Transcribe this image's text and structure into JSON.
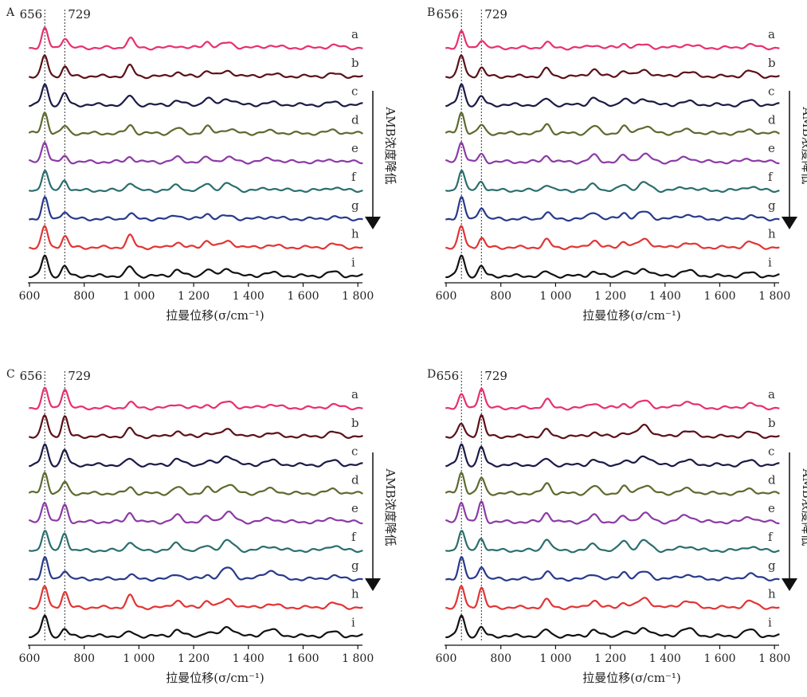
{
  "chart_data": [
    {
      "panel": "A",
      "type": "line",
      "xlabel": "拉曼位移(σ/cm⁻¹)",
      "ylabel": "",
      "xlim": [
        600,
        1800
      ],
      "x_ticks": [
        "600",
        "800",
        "1 000",
        "1 200",
        "1 400",
        "1 600",
        "1 800"
      ],
      "reference_lines": [
        {
          "x": 656,
          "label": "656"
        },
        {
          "x": 729,
          "label": "729"
        }
      ],
      "arrow_label": "AMB浓度降低",
      "peaks_x": [
        656,
        729,
        968,
        1140,
        1250,
        1325,
        1480,
        1710
      ],
      "series": [
        {
          "name": "a",
          "color": "#e8306e",
          "peaks": [
            0.9,
            0.5,
            0.45,
            0.1,
            0.3,
            0.25,
            0.1,
            0.12
          ]
        },
        {
          "name": "b",
          "color": "#5c1018",
          "peaks": [
            1.0,
            0.45,
            0.5,
            0.2,
            0.3,
            0.25,
            0.1,
            0.12
          ]
        },
        {
          "name": "c",
          "color": "#1a1a46",
          "peaks": [
            1.0,
            0.55,
            0.45,
            0.2,
            0.35,
            0.3,
            0.1,
            0.12
          ]
        },
        {
          "name": "d",
          "color": "#5c6a2e",
          "peaks": [
            1.0,
            0.35,
            0.4,
            0.25,
            0.3,
            0.2,
            0.1,
            0.15
          ]
        },
        {
          "name": "e",
          "color": "#8c3aa6",
          "peaks": [
            1.0,
            0.25,
            0.25,
            0.2,
            0.2,
            0.2,
            0.15,
            0.1
          ]
        },
        {
          "name": "f",
          "color": "#2a6e6e",
          "peaks": [
            1.0,
            0.5,
            0.4,
            0.25,
            0.35,
            0.3,
            0.1,
            0.15
          ]
        },
        {
          "name": "g",
          "color": "#283a8c",
          "peaks": [
            1.0,
            0.4,
            0.25,
            0.2,
            0.25,
            0.15,
            0.1,
            0.1
          ]
        },
        {
          "name": "h",
          "color": "#e23434",
          "peaks": [
            1.0,
            0.55,
            0.55,
            0.25,
            0.35,
            0.3,
            0.1,
            0.15
          ]
        },
        {
          "name": "i",
          "color": "#111111",
          "peaks": [
            1.0,
            0.45,
            0.45,
            0.3,
            0.35,
            0.35,
            0.15,
            0.2
          ]
        }
      ]
    },
    {
      "panel": "B",
      "type": "line",
      "xlabel": "拉曼位移(σ/cm⁻¹)",
      "ylabel": "",
      "xlim": [
        600,
        1800
      ],
      "x_ticks": [
        "600",
        "800",
        "1 000",
        "1 200",
        "1 400",
        "1 600",
        "1 800"
      ],
      "reference_lines": [
        {
          "x": 656,
          "label": "656"
        },
        {
          "x": 729,
          "label": "729"
        }
      ],
      "arrow_label": "AMB浓度降低",
      "peaks_x": [
        656,
        729,
        968,
        1140,
        1250,
        1325,
        1480,
        1710
      ],
      "series": [
        {
          "name": "a",
          "color": "#e8306e",
          "peaks": [
            0.75,
            0.4,
            0.25,
            0.15,
            0.2,
            0.15,
            0.15,
            0.15
          ]
        },
        {
          "name": "b",
          "color": "#5c1018",
          "peaks": [
            1.0,
            0.4,
            0.35,
            0.35,
            0.3,
            0.3,
            0.2,
            0.25
          ]
        },
        {
          "name": "c",
          "color": "#1a1a46",
          "peaks": [
            1.0,
            0.4,
            0.3,
            0.35,
            0.3,
            0.3,
            0.15,
            0.2
          ]
        },
        {
          "name": "d",
          "color": "#5c6a2e",
          "peaks": [
            1.0,
            0.4,
            0.45,
            0.35,
            0.3,
            0.35,
            0.15,
            0.15
          ]
        },
        {
          "name": "e",
          "color": "#8c3aa6",
          "peaks": [
            1.0,
            0.35,
            0.3,
            0.3,
            0.3,
            0.35,
            0.2,
            0.15
          ]
        },
        {
          "name": "f",
          "color": "#2a6e6e",
          "peaks": [
            1.0,
            0.45,
            0.3,
            0.3,
            0.3,
            0.35,
            0.15,
            0.2
          ]
        },
        {
          "name": "g",
          "color": "#283a8c",
          "peaks": [
            1.0,
            0.6,
            0.3,
            0.35,
            0.3,
            0.35,
            0.2,
            0.15
          ]
        },
        {
          "name": "h",
          "color": "#e23434",
          "peaks": [
            1.0,
            0.45,
            0.35,
            0.35,
            0.3,
            0.4,
            0.2,
            0.25
          ]
        },
        {
          "name": "i",
          "color": "#111111",
          "peaks": [
            1.0,
            0.45,
            0.2,
            0.2,
            0.25,
            0.35,
            0.25,
            0.15
          ]
        }
      ]
    },
    {
      "panel": "C",
      "type": "line",
      "xlabel": "拉曼位移(σ/cm⁻¹)",
      "ylabel": "",
      "xlim": [
        600,
        1800
      ],
      "x_ticks": [
        "600",
        "800",
        "1 000",
        "1 200",
        "1 400",
        "1 600",
        "1 800"
      ],
      "reference_lines": [
        {
          "x": 656,
          "label": "656"
        },
        {
          "x": 729,
          "label": "729"
        }
      ],
      "arrow_label": "AMB浓度降低",
      "peaks_x": [
        656,
        729,
        968,
        1140,
        1250,
        1325,
        1480,
        1710
      ],
      "series": [
        {
          "name": "a",
          "color": "#e8306e",
          "peaks": [
            0.9,
            0.95,
            0.25,
            0.2,
            0.15,
            0.3,
            0.15,
            0.15
          ]
        },
        {
          "name": "b",
          "color": "#5c1018",
          "peaks": [
            1.0,
            0.95,
            0.35,
            0.25,
            0.2,
            0.35,
            0.15,
            0.2
          ]
        },
        {
          "name": "c",
          "color": "#1a1a46",
          "peaks": [
            1.0,
            0.7,
            0.3,
            0.3,
            0.2,
            0.45,
            0.2,
            0.2
          ]
        },
        {
          "name": "d",
          "color": "#5c6a2e",
          "peaks": [
            1.0,
            0.55,
            0.3,
            0.3,
            0.25,
            0.45,
            0.2,
            0.2
          ]
        },
        {
          "name": "e",
          "color": "#8c3aa6",
          "peaks": [
            1.0,
            0.8,
            0.45,
            0.3,
            0.25,
            0.45,
            0.15,
            0.2
          ]
        },
        {
          "name": "f",
          "color": "#2a6e6e",
          "peaks": [
            1.0,
            0.85,
            0.45,
            0.35,
            0.25,
            0.45,
            0.2,
            0.25
          ]
        },
        {
          "name": "g",
          "color": "#283a8c",
          "peaks": [
            1.0,
            0.45,
            0.2,
            0.25,
            0.2,
            0.55,
            0.4,
            0.15
          ]
        },
        {
          "name": "h",
          "color": "#e23434",
          "peaks": [
            1.0,
            0.75,
            0.55,
            0.35,
            0.35,
            0.4,
            0.15,
            0.2
          ]
        },
        {
          "name": "i",
          "color": "#111111",
          "peaks": [
            1.0,
            0.3,
            0.2,
            0.3,
            0.2,
            0.45,
            0.3,
            0.2
          ]
        }
      ]
    },
    {
      "panel": "D",
      "type": "line",
      "xlabel": "拉曼位移(σ/cm⁻¹)",
      "ylabel": "",
      "xlim": [
        600,
        1800
      ],
      "x_ticks": [
        "600",
        "800",
        "1 000",
        "1 200",
        "1 400",
        "1 600",
        "1 800"
      ],
      "reference_lines": [
        {
          "x": 656,
          "label": "656"
        },
        {
          "x": 729,
          "label": "729"
        }
      ],
      "arrow_label": "AMB浓度降低",
      "peaks_x": [
        656,
        729,
        968,
        1140,
        1250,
        1325,
        1480,
        1710
      ],
      "series": [
        {
          "name": "a",
          "color": "#e8306e",
          "peaks": [
            0.6,
            1.0,
            0.4,
            0.25,
            0.2,
            0.35,
            0.3,
            0.2
          ]
        },
        {
          "name": "b",
          "color": "#5c1018",
          "peaks": [
            0.6,
            1.0,
            0.3,
            0.2,
            0.2,
            0.55,
            0.25,
            0.2
          ]
        },
        {
          "name": "c",
          "color": "#1a1a46",
          "peaks": [
            1.0,
            0.85,
            0.3,
            0.25,
            0.2,
            0.45,
            0.2,
            0.2
          ]
        },
        {
          "name": "d",
          "color": "#5c6a2e",
          "peaks": [
            1.0,
            0.75,
            0.5,
            0.35,
            0.3,
            0.4,
            0.2,
            0.2
          ]
        },
        {
          "name": "e",
          "color": "#8c3aa6",
          "peaks": [
            1.0,
            0.95,
            0.45,
            0.3,
            0.25,
            0.4,
            0.3,
            0.25
          ]
        },
        {
          "name": "f",
          "color": "#2a6e6e",
          "peaks": [
            1.0,
            0.6,
            0.6,
            0.3,
            0.5,
            0.45,
            0.2,
            0.2
          ]
        },
        {
          "name": "g",
          "color": "#283a8c",
          "peaks": [
            1.0,
            0.65,
            0.35,
            0.25,
            0.35,
            0.35,
            0.2,
            0.25
          ]
        },
        {
          "name": "h",
          "color": "#e23434",
          "peaks": [
            1.0,
            0.95,
            0.35,
            0.35,
            0.25,
            0.45,
            0.3,
            0.3
          ]
        },
        {
          "name": "i",
          "color": "#111111",
          "peaks": [
            1.0,
            0.4,
            0.3,
            0.3,
            0.25,
            0.4,
            0.35,
            0.3
          ]
        }
      ]
    }
  ]
}
